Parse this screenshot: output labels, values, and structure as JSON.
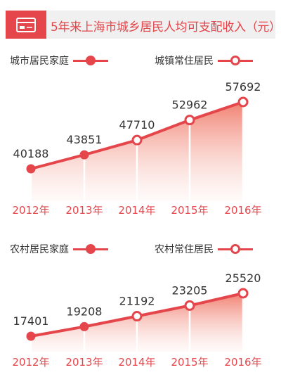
{
  "title": "5年来上海市城乡居民人均可支配收入（元）",
  "icons": {
    "title_icon": "wallet-card-icon"
  },
  "colors": {
    "accent": "#e4464b",
    "title_bar_bg": "#f0f0f0",
    "area_top": "#f07a6a",
    "area_bottom": "#fdf1ee",
    "label_text": "#333333"
  },
  "chart_data": [
    {
      "type": "area",
      "categories": [
        "2012年",
        "2013年",
        "2014年",
        "2015年",
        "2016年"
      ],
      "series": [
        {
          "name": "城市居民家庭",
          "values": [
            40188,
            43851,
            47710,
            null,
            null
          ],
          "marker": "filled"
        },
        {
          "name": "城镇常住居民",
          "values": [
            null,
            null,
            47710,
            52962,
            57692
          ],
          "marker": "hollow"
        }
      ],
      "data_labels": [
        "40188",
        "43851",
        "47710",
        "52962",
        "57692"
      ],
      "ylim": [
        30000,
        60000
      ],
      "legend": "top",
      "grid": false
    },
    {
      "type": "area",
      "categories": [
        "2012年",
        "2013年",
        "2014年",
        "2015年",
        "2016年"
      ],
      "series": [
        {
          "name": "农村居民家庭",
          "values": [
            17401,
            19208,
            21192,
            null,
            null
          ],
          "marker": "filled"
        },
        {
          "name": "农村常住居民",
          "values": [
            null,
            null,
            21192,
            23205,
            25520
          ],
          "marker": "hollow"
        }
      ],
      "data_labels": [
        "17401",
        "19208",
        "21192",
        "23205",
        "25520"
      ],
      "ylim": [
        5000,
        30000
      ],
      "legend": "top",
      "grid": false
    }
  ]
}
